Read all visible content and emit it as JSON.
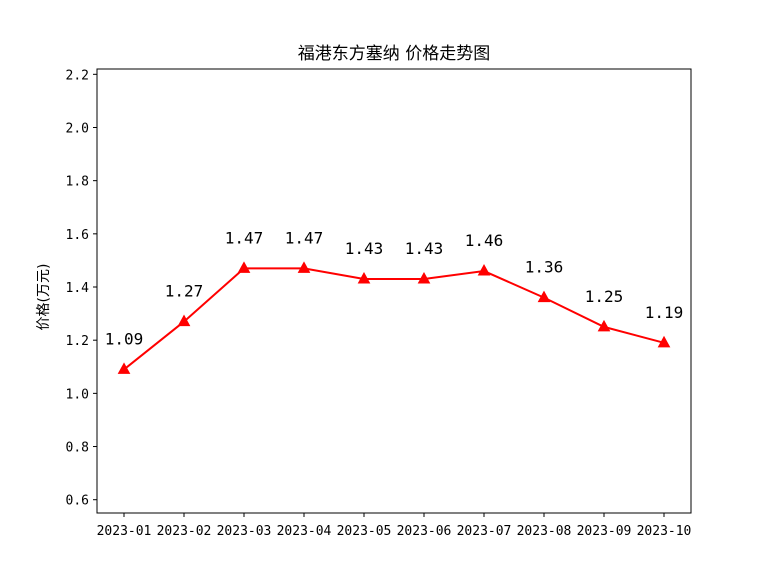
{
  "chart_data": {
    "type": "line",
    "title": "福港东方塞纳 价格走势图",
    "xlabel": "",
    "ylabel": "价格(万元)",
    "categories": [
      "2023-01",
      "2023-02",
      "2023-03",
      "2023-04",
      "2023-05",
      "2023-06",
      "2023-07",
      "2023-08",
      "2023-09",
      "2023-10"
    ],
    "series": [
      {
        "values": [
          1.09,
          1.27,
          1.47,
          1.47,
          1.43,
          1.43,
          1.46,
          1.36,
          1.25,
          1.19
        ],
        "color": "#ff0000",
        "marker": "triangle-up"
      }
    ],
    "data_labels": [
      "1.09",
      "1.27",
      "1.47",
      "1.47",
      "1.43",
      "1.43",
      "1.46",
      "1.36",
      "1.25",
      "1.19"
    ],
    "ylim": [
      0.55,
      2.22
    ],
    "yticks": [
      0.6,
      0.8,
      1.0,
      1.2,
      1.4,
      1.6,
      1.8,
      2.0,
      2.2
    ],
    "ytick_labels": [
      "0.6",
      "0.8",
      "1.0",
      "1.2",
      "1.4",
      "1.6",
      "1.8",
      "2.0",
      "2.2"
    ],
    "grid": false,
    "legend": "none"
  }
}
